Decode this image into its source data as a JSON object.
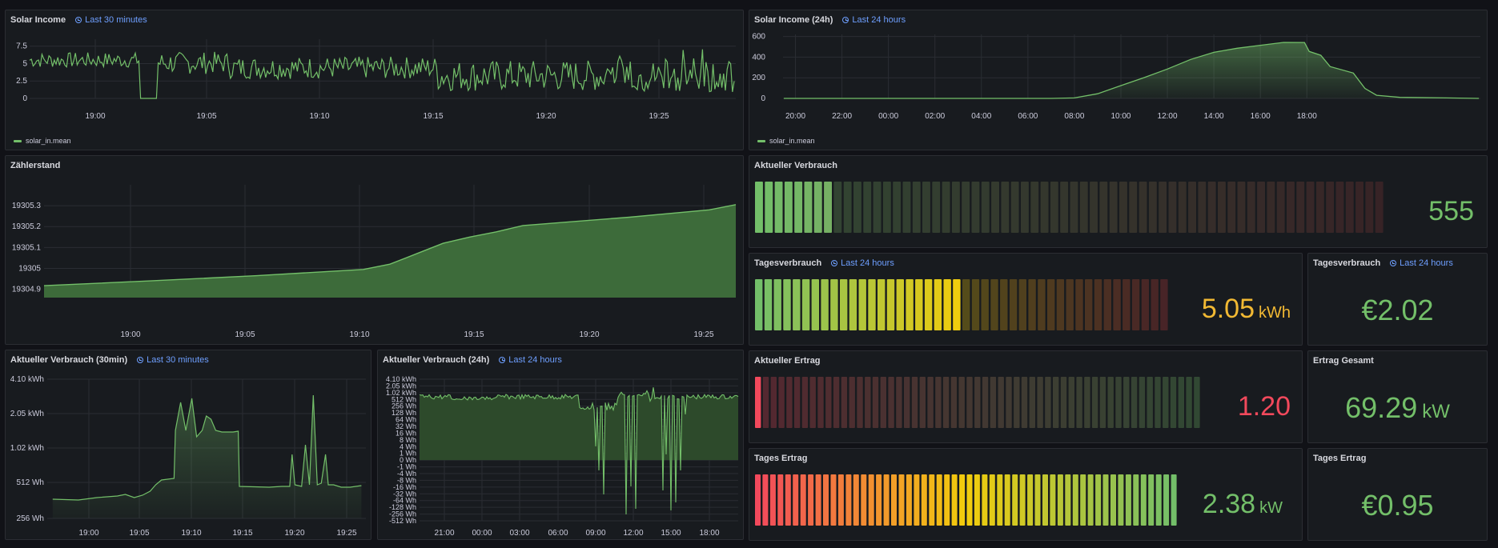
{
  "panels": {
    "solar30": {
      "title": "Solar Income",
      "time_range": "Last 30 minutes",
      "legend": "solar_in.mean",
      "chart_data": {
        "type": "line",
        "xticks": [
          "19:00",
          "19:05",
          "19:10",
          "19:15",
          "19:20",
          "19:25"
        ],
        "yticks": [
          "7.5",
          "5",
          "2.5",
          "0"
        ],
        "ylim": [
          0,
          8.5
        ],
        "series": [
          {
            "name": "solar_in.mean",
            "color": "#73bf69"
          }
        ]
      }
    },
    "solar24": {
      "title": "Solar Income (24h)",
      "time_range": "Last 24 hours",
      "legend": "solar_in.mean",
      "chart_data": {
        "type": "area",
        "xticks": [
          "20:00",
          "22:00",
          "00:00",
          "02:00",
          "04:00",
          "06:00",
          "08:00",
          "10:00",
          "12:00",
          "14:00",
          "16:00",
          "18:00"
        ],
        "yticks": [
          "600",
          "400",
          "200",
          "0"
        ],
        "ylim": [
          0,
          620
        ],
        "series": [
          {
            "name": "solar_in.mean",
            "color": "#73bf69"
          }
        ],
        "points": [
          [
            19.5,
            0
          ],
          [
            31,
            0
          ],
          [
            32,
            5
          ],
          [
            33,
            45
          ],
          [
            34,
            120
          ],
          [
            35,
            200
          ],
          [
            36,
            280
          ],
          [
            37,
            370
          ],
          [
            38,
            440
          ],
          [
            39,
            490
          ],
          [
            40,
            520
          ],
          [
            41,
            540
          ],
          [
            41.9,
            545
          ],
          [
            42.1,
            450
          ],
          [
            42.6,
            420
          ],
          [
            43,
            310
          ],
          [
            44,
            250
          ],
          [
            44.5,
            100
          ],
          [
            45,
            30
          ],
          [
            46,
            10
          ],
          [
            48,
            5
          ],
          [
            49.4,
            0
          ]
        ]
      }
    },
    "zaehler": {
      "title": "Zählerstand",
      "chart_data": {
        "type": "area",
        "xticks": [
          "19:00",
          "19:05",
          "19:10",
          "19:15",
          "19:20",
          "19:25"
        ],
        "yticks": [
          "19305.3",
          "19305.2",
          "19305.1",
          "19305",
          "19304.9"
        ],
        "ylim": [
          19304.86,
          19305.4
        ],
        "series": [
          {
            "name": "Zählerstand",
            "color": "#73bf69"
          }
        ],
        "points": [
          [
            0,
            19304.917
          ],
          [
            0.2,
            19304.94
          ],
          [
            0.4,
            19304.965
          ],
          [
            0.6,
            19304.995
          ],
          [
            0.65,
            19305.02
          ],
          [
            0.7,
            19305.07
          ],
          [
            0.75,
            19305.12
          ],
          [
            0.8,
            19305.15
          ],
          [
            0.85,
            19305.175
          ],
          [
            0.9,
            19305.205
          ],
          [
            1.0,
            19305.225
          ],
          [
            1.1,
            19305.245
          ],
          [
            1.25,
            19305.28
          ],
          [
            1.3,
            19305.305
          ]
        ]
      }
    },
    "verbrauch30": {
      "title": "Aktueller Verbrauch (30min)",
      "time_range": "Last 30 minutes",
      "chart_data": {
        "type": "area",
        "xticks": [
          "19:00",
          "19:05",
          "19:10",
          "19:15",
          "19:20",
          "19:25"
        ],
        "yticks": [
          "4.10 kWh",
          "2.05 kWh",
          "1.02 kWh",
          "512 Wh",
          "256 Wh"
        ],
        "series": [
          {
            "name": "Aktueller Verbrauch",
            "color": "#73bf69"
          }
        ]
      }
    },
    "verbrauch24": {
      "title": "Aktueller Verbrauch (24h)",
      "time_range": "Last 24 hours",
      "chart_data": {
        "type": "area",
        "xticks": [
          "21:00",
          "00:00",
          "03:00",
          "06:00",
          "09:00",
          "12:00",
          "15:00",
          "18:00"
        ],
        "yticks": [
          "4.10 kWh",
          "2.05 kWh",
          "1.02 kWh",
          "512 Wh",
          "256 Wh",
          "128 Wh",
          "64 Wh",
          "32 Wh",
          "16 Wh",
          "8 Wh",
          "4 Wh",
          "1 Wh",
          "0 Wh",
          "-1 Wh",
          "-4 Wh",
          "-8 Wh",
          "-16 Wh",
          "-32 Wh",
          "-64 Wh",
          "-128 Wh",
          "-256 Wh",
          "-512 Wh"
        ],
        "series": [
          {
            "name": "Aktueller Verbrauch",
            "color": "#73bf69"
          }
        ]
      }
    },
    "aktVerbrauch": {
      "title": "Aktueller Verbrauch",
      "value": "555",
      "value_color": "#73bf69",
      "gauge": {
        "fraction": 0.125,
        "cells": 64,
        "colors": [
          "#73bf69",
          "#8a3a3a"
        ]
      }
    },
    "tagesverbrauch": {
      "title": "Tagesverbrauch",
      "time_range": "Last 24 hours",
      "value": "5.05",
      "unit": "kWh",
      "value_color": "#f2b933",
      "gauge": {
        "fraction": 0.505,
        "cells": 44,
        "colors": [
          "#73bf69",
          "#f2cc0c",
          "#c43c3c"
        ]
      }
    },
    "tagesverbrauchCost": {
      "title": "Tagesverbrauch",
      "time_range": "Last 24 hours",
      "value": "€2.02",
      "value_color": "#73bf69"
    },
    "aktErtrag": {
      "title": "Aktueller Ertrag",
      "value": "1.20",
      "value_color": "#f2495c",
      "gauge": {
        "fraction": 0.02,
        "cells": 57,
        "colors": [
          "#f2495c",
          "#73bf69"
        ]
      }
    },
    "ertragGesamt": {
      "title": "Ertrag Gesamt",
      "value": "69.29",
      "unit": "kW",
      "value_color": "#73bf69"
    },
    "tagesErtrag": {
      "title": "Tages Ertrag",
      "value": "2.38",
      "unit": "kW",
      "value_color": "#73bf69",
      "gauge": {
        "fraction": 1.0,
        "cells": 56,
        "colors": [
          "#f2495c",
          "#f2cc0c",
          "#73bf69"
        ]
      }
    },
    "tagesErtragCost": {
      "title": "Tages Ertrag",
      "value": "€0.95",
      "value_color": "#73bf69"
    }
  }
}
